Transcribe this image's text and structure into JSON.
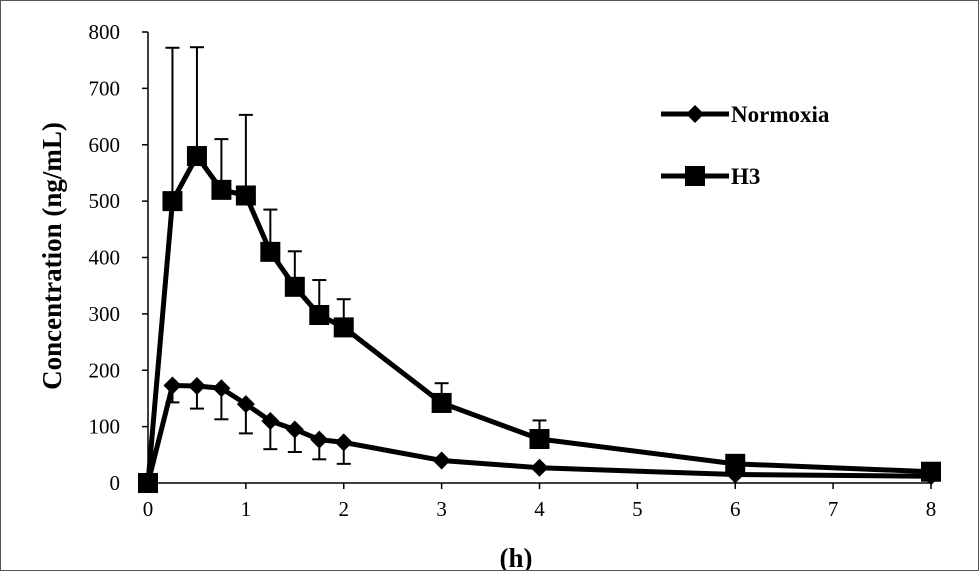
{
  "chart_data": {
    "type": "line",
    "title": "",
    "xlabel": "(h)",
    "ylabel": "Concentration (ng/mL)",
    "xlim": [
      0,
      8
    ],
    "ylim": [
      0,
      800
    ],
    "x_ticks": [
      0,
      1,
      2,
      3,
      4,
      5,
      6,
      7,
      8
    ],
    "y_ticks": [
      0,
      100,
      200,
      300,
      400,
      500,
      600,
      700,
      800
    ],
    "grid": false,
    "legend_position": "top-right",
    "series": [
      {
        "name": "Normoxia",
        "marker": "diamond",
        "color": "#000000",
        "x": [
          0,
          0.25,
          0.5,
          0.75,
          1,
          1.25,
          1.5,
          1.75,
          2,
          3,
          4,
          6,
          8
        ],
        "y": [
          0,
          173,
          172,
          168,
          140,
          110,
          95,
          77,
          72,
          40,
          27,
          15,
          12
        ],
        "err_low": [
          0,
          30,
          40,
          55,
          52,
          50,
          40,
          35,
          38,
          0,
          0,
          0,
          0
        ],
        "err_high": [
          0,
          0,
          0,
          0,
          0,
          0,
          0,
          0,
          0,
          0,
          0,
          0,
          0
        ]
      },
      {
        "name": "H3",
        "marker": "square",
        "color": "#000000",
        "x": [
          0,
          0.25,
          0.5,
          0.75,
          1,
          1.25,
          1.5,
          1.75,
          2,
          3,
          4,
          6,
          8
        ],
        "y": [
          0,
          500,
          580,
          520,
          510,
          410,
          348,
          298,
          276,
          142,
          78,
          34,
          20
        ],
        "err_low": [
          0,
          0,
          0,
          0,
          0,
          0,
          0,
          0,
          0,
          0,
          0,
          0,
          0
        ],
        "err_high": [
          0,
          272,
          193,
          90,
          143,
          75,
          63,
          62,
          50,
          35,
          33,
          0,
          0
        ]
      }
    ]
  }
}
